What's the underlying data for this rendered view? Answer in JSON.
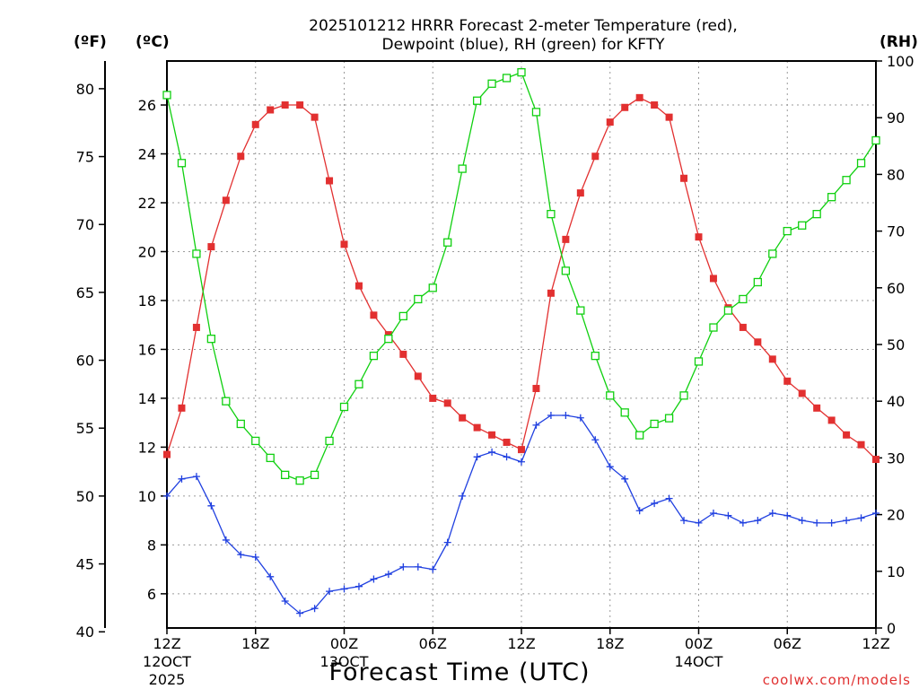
{
  "title_line1": "2025101212 HRRR Forecast 2-meter Temperature (red),",
  "title_line2": "Dewpoint (blue), RH (green) for KFTY",
  "credit": "coolwx.com/models",
  "colors": {
    "temperature": "#e23030",
    "dewpoint": "#2040e0",
    "rh": "#10d010",
    "grid": "#9a9a9a"
  },
  "chart_data": {
    "type": "line",
    "title": "2025101212 HRRR Forecast 2-meter Temperature (red), Dewpoint (blue), RH (green) for KFTY",
    "xlabel": "Forecast Time (UTC)",
    "x": [
      0,
      1,
      2,
      3,
      4,
      5,
      6,
      7,
      8,
      9,
      10,
      11,
      12,
      13,
      14,
      15,
      16,
      17,
      18,
      19,
      20,
      21,
      22,
      23,
      24,
      25,
      26,
      27,
      28,
      29,
      30,
      31,
      32,
      33,
      34,
      35,
      36,
      37,
      38,
      39,
      40,
      41,
      42,
      43,
      44,
      45,
      46,
      47,
      48
    ],
    "x_ticks": [
      {
        "hour": 0,
        "label": "12Z",
        "sub1": "12OCT",
        "sub2": "2025"
      },
      {
        "hour": 6,
        "label": "18Z",
        "sub1": "",
        "sub2": ""
      },
      {
        "hour": 12,
        "label": "00Z",
        "sub1": "13OCT",
        "sub2": ""
      },
      {
        "hour": 18,
        "label": "06Z",
        "sub1": "",
        "sub2": ""
      },
      {
        "hour": 24,
        "label": "12Z",
        "sub1": "",
        "sub2": ""
      },
      {
        "hour": 30,
        "label": "18Z",
        "sub1": "",
        "sub2": ""
      },
      {
        "hour": 36,
        "label": "00Z",
        "sub1": "14OCT",
        "sub2": ""
      },
      {
        "hour": 42,
        "label": "06Z",
        "sub1": "",
        "sub2": ""
      },
      {
        "hour": 48,
        "label": "12Z",
        "sub1": "",
        "sub2": ""
      }
    ],
    "xlim": [
      0,
      48
    ],
    "y_left_celsius": {
      "label": "(ºC)",
      "ticks": [
        6,
        8,
        10,
        12,
        14,
        16,
        18,
        20,
        22,
        24,
        26
      ],
      "ylim": [
        4.6,
        27.8
      ]
    },
    "y_left_fahrenheit": {
      "label": "(ºF)",
      "ticks": [
        40,
        45,
        50,
        55,
        60,
        65,
        70,
        75,
        80
      ]
    },
    "y_right_rh": {
      "label": "(RH)",
      "ticks": [
        0,
        10,
        20,
        30,
        40,
        50,
        60,
        70,
        80,
        90,
        100
      ],
      "ylim": [
        0,
        100
      ]
    },
    "grid": true,
    "series": [
      {
        "name": "Temperature",
        "axis": "celsius",
        "marker": "filled-square",
        "values": [
          11.7,
          13.6,
          16.9,
          20.2,
          22.1,
          23.9,
          25.2,
          25.8,
          26.0,
          26.0,
          25.5,
          22.9,
          20.3,
          18.6,
          17.4,
          16.6,
          15.8,
          14.9,
          14.0,
          13.8,
          13.2,
          12.8,
          12.5,
          12.2,
          11.9,
          14.4,
          18.3,
          20.5,
          22.4,
          23.9,
          25.3,
          25.9,
          26.3,
          26.0,
          25.5,
          23.0,
          20.6,
          18.9,
          17.7,
          16.9,
          16.3,
          15.6,
          14.7,
          14.2,
          13.6,
          13.1,
          12.5,
          12.1,
          11.5
        ]
      },
      {
        "name": "Dewpoint",
        "axis": "celsius",
        "marker": "plus",
        "values": [
          10.0,
          10.7,
          10.8,
          9.6,
          8.2,
          7.6,
          7.5,
          6.7,
          5.7,
          5.2,
          5.4,
          6.1,
          6.2,
          6.3,
          6.6,
          6.8,
          7.1,
          7.1,
          7.0,
          8.1,
          10.0,
          11.6,
          11.8,
          11.6,
          11.4,
          12.9,
          13.3,
          13.3,
          13.2,
          12.3,
          11.2,
          10.7,
          9.4,
          9.7,
          9.9,
          9.0,
          8.9,
          9.3,
          9.2,
          8.9,
          9.0,
          9.3,
          9.2,
          9.0,
          8.9,
          8.9,
          9.0,
          9.1,
          9.3
        ]
      },
      {
        "name": "RH",
        "axis": "rh",
        "marker": "open-square",
        "values": [
          94,
          82,
          66,
          51,
          40,
          36,
          33,
          30,
          27,
          26,
          27,
          33,
          39,
          43,
          48,
          51,
          55,
          58,
          60,
          68,
          81,
          93,
          96,
          97,
          98,
          91,
          73,
          63,
          56,
          48,
          41,
          38,
          34,
          36,
          37,
          41,
          47,
          53,
          56,
          58,
          61,
          66,
          70,
          71,
          73,
          76,
          79,
          82,
          86
        ]
      }
    ]
  }
}
